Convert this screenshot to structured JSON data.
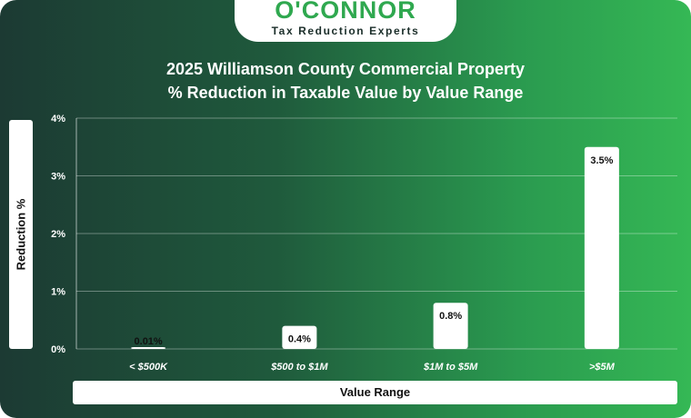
{
  "brand": {
    "name": "O'CONNOR",
    "tagline": "Tax Reduction Experts"
  },
  "colors": {
    "bar": "#ffffff",
    "accent": "#2fa84f",
    "background_start": "#1c3a33",
    "background_end": "#35b855"
  },
  "chart_data": {
    "type": "bar",
    "title_line1": "2025 Williamson County Commercial Property",
    "title_line2": "% Reduction in Taxable Value by Value Range",
    "xlabel": "Value Range",
    "ylabel": "Reduction %",
    "categories": [
      "< $500K",
      "$500 to $1M",
      "$1M to $5M",
      ">$5M"
    ],
    "values": [
      0.01,
      0.4,
      0.8,
      3.5
    ],
    "data_labels": [
      "0.01%",
      "0.4%",
      "0.8%",
      "3.5%"
    ],
    "y_ticks": [
      0,
      1,
      2,
      3,
      4
    ],
    "y_tick_labels": [
      "0%",
      "1%",
      "2%",
      "3%",
      "4%"
    ],
    "ylim": [
      0,
      4
    ],
    "grid": true,
    "legend": "none"
  }
}
